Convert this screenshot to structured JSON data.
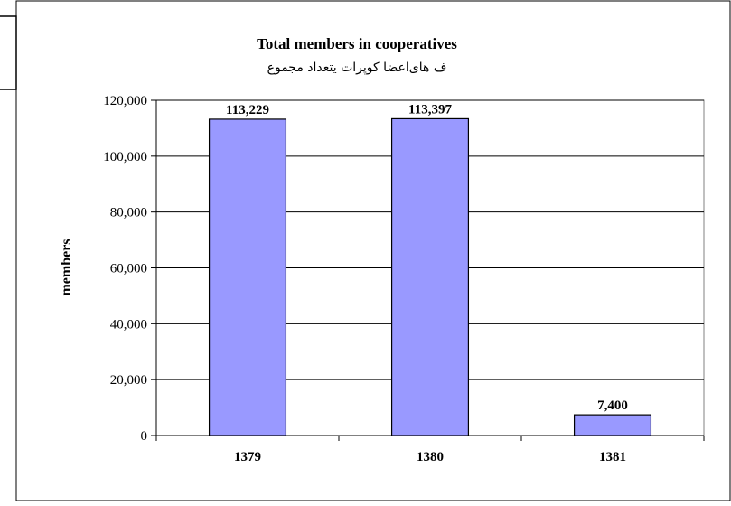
{
  "chart_data": {
    "type": "bar",
    "title": "Total members in cooperatives",
    "subtitle": "ف های‌اعضا کوپرات یتعداد مجموع",
    "ylabel": "members",
    "xlabel": "",
    "categories": [
      "1379",
      "1380",
      "1381"
    ],
    "values": [
      113229,
      113397,
      7400
    ],
    "data_labels": [
      "113,229",
      "113,397",
      "7,400"
    ],
    "ylim": [
      0,
      120000
    ],
    "yticks": [
      0,
      20000,
      40000,
      60000,
      80000,
      100000,
      120000
    ],
    "ytick_labels": [
      "0",
      "20,000",
      "40,000",
      "60,000",
      "80,000",
      "100,000",
      "120,000"
    ],
    "grid": true,
    "legend": "none",
    "bar_color": "#9999ff",
    "plot_background": "#ffffff"
  }
}
